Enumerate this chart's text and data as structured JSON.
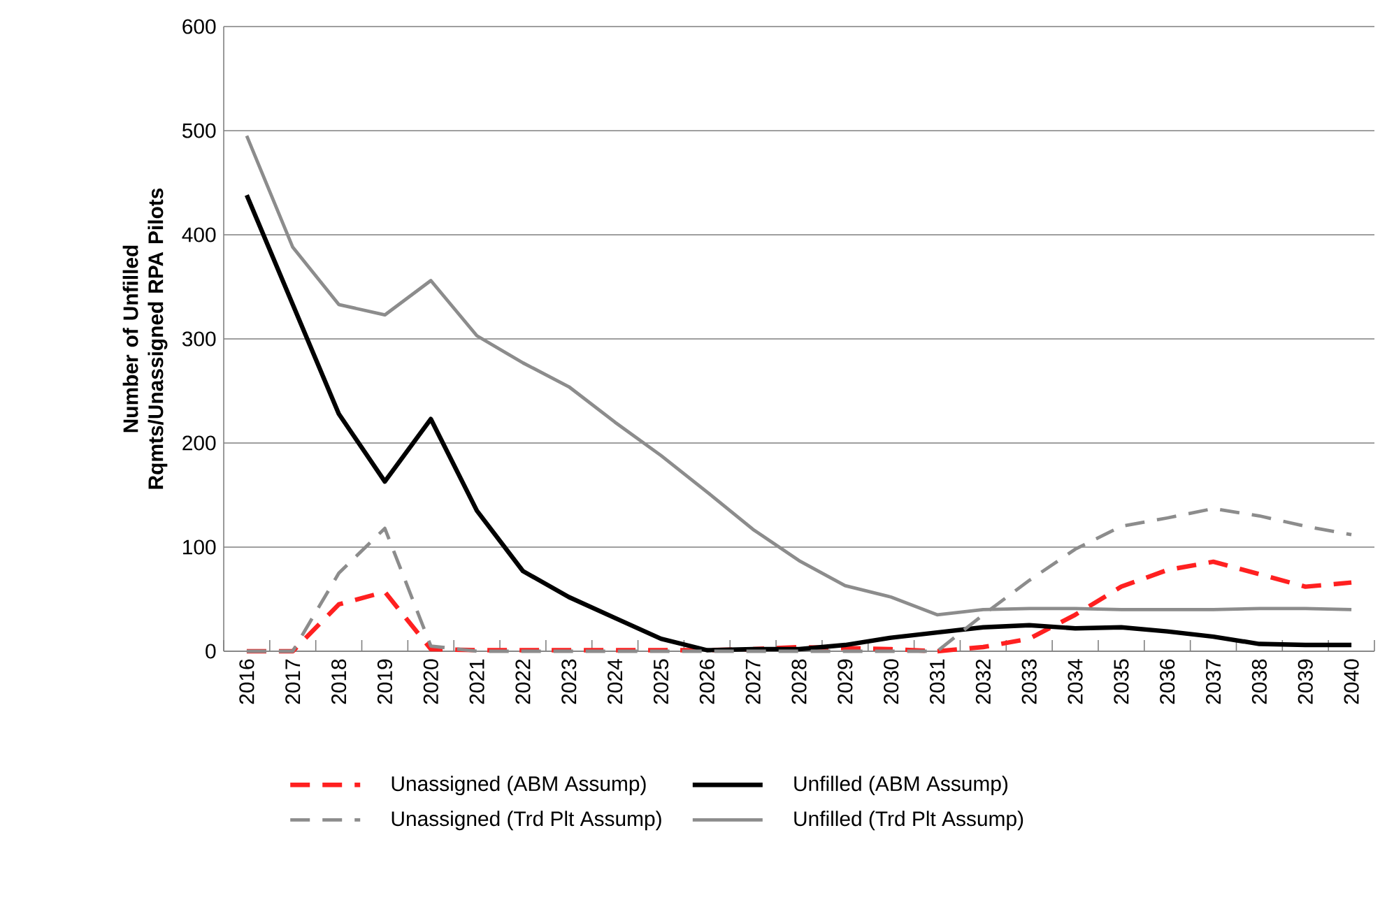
{
  "chart_data": {
    "type": "line",
    "ylabel": "Number of Unfilled Rqmts/Unassigned RPA Pilots",
    "categories": [
      "2016",
      "2017",
      "2018",
      "2019",
      "2020",
      "2021",
      "2022",
      "2023",
      "2024",
      "2025",
      "2026",
      "2027",
      "2028",
      "2029",
      "2030",
      "2031",
      "2032",
      "2033",
      "2034",
      "2035",
      "2036",
      "2037",
      "2038",
      "2039",
      "2040"
    ],
    "ylim": [
      0,
      600
    ],
    "yticks": [
      0,
      100,
      200,
      300,
      400,
      500,
      600
    ],
    "grid": "y",
    "legend": "bottom",
    "series": [
      {
        "name": "Unassigned (ABM Assump)",
        "color": "#ff2020",
        "line_style": "dashed",
        "values": [
          0,
          0,
          45,
          57,
          2,
          1,
          1,
          1,
          1,
          1,
          1,
          2,
          4,
          3,
          2,
          0,
          4,
          12,
          35,
          62,
          78,
          86,
          74,
          62,
          66
        ]
      },
      {
        "name": "Unfilled (ABM Assump)",
        "color": "#000000",
        "line_style": "solid",
        "values": [
          438,
          333,
          228,
          163,
          223,
          135,
          77,
          52,
          32,
          12,
          1,
          2,
          2,
          6,
          13,
          18,
          23,
          25,
          22,
          23,
          19,
          14,
          7,
          6,
          6
        ]
      },
      {
        "name": "Unassigned (Trd Plt Assump)",
        "color": "#8c8c8c",
        "line_style": "dashed",
        "values": [
          0,
          0,
          75,
          118,
          5,
          0,
          0,
          0,
          0,
          0,
          0,
          0,
          0,
          0,
          0,
          0,
          35,
          68,
          98,
          120,
          128,
          137,
          130,
          120,
          112
        ]
      },
      {
        "name": "Unfilled (Trd Plt Assump)",
        "color": "#8c8c8c",
        "line_style": "solid",
        "values": [
          495,
          388,
          333,
          323,
          356,
          303,
          277,
          254,
          220,
          188,
          153,
          117,
          87,
          63,
          52,
          35,
          40,
          41,
          41,
          40,
          40,
          40,
          41,
          41,
          40
        ]
      }
    ]
  }
}
